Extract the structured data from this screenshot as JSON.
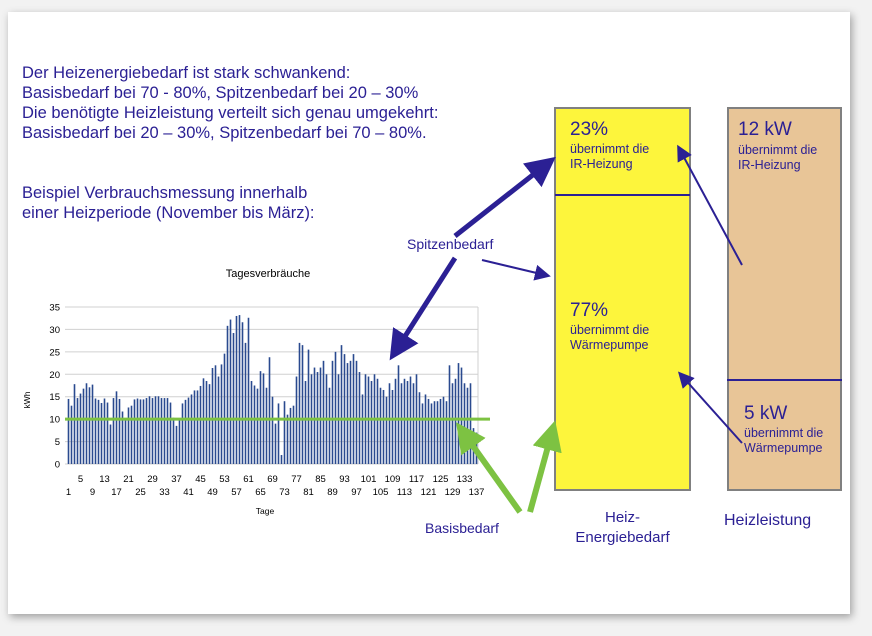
{
  "intro": {
    "lines": [
      "Der Heizenergiebedarf ist stark schwankend:",
      "Basisbedarf bei 70 - 80%, Spitzenbedarf bei 20 – 30%",
      "Die benötigte Heizleistung verteilt sich genau umgekehrt:",
      "Basisbedarf bei 20 – 30%, Spitzenbedarf bei 70 – 80%."
    ],
    "example": [
      "Beispiel Verbrauchsmessung innerhalb",
      "einer Heizperiode (November bis März):"
    ]
  },
  "labels": {
    "spitzenbedarf": "Spitzenbedarf",
    "basisbedarf": "Basisbedarf"
  },
  "energy_box": {
    "title_lines": [
      "Heiz-",
      "Energiebedarf"
    ],
    "top": {
      "value": "23%",
      "text": [
        "übernimmt die",
        "IR-Heizung"
      ],
      "share": 0.23
    },
    "bottom": {
      "value": "77%",
      "text": [
        "übernimmt die",
        "Wärmepumpe"
      ],
      "share": 0.77
    },
    "color": "#fdf53c"
  },
  "power_box": {
    "title": "Heizleistung",
    "top": {
      "value": "12 kW",
      "text": [
        "übernimmt die",
        "IR-Heizung"
      ]
    },
    "bottom": {
      "value": "5 kW",
      "text": [
        "übernimmt die",
        "Wärmepumpe"
      ]
    },
    "color": "#e8c597"
  },
  "colors": {
    "text": "#2b2094",
    "arrow": "#2b2094",
    "green": "#7dc242",
    "bar": "#2a4a8f"
  },
  "chart_data": {
    "type": "bar",
    "title": "Tagesverbräuche",
    "xlabel": "Tage",
    "ylabel": "kWh",
    "ylim": [
      0,
      35
    ],
    "yticks": [
      0,
      5,
      10,
      15,
      20,
      25,
      30,
      35
    ],
    "xtick_labels_top": [
      "5",
      "13",
      "21",
      "29",
      "37",
      "45",
      "53",
      "61",
      "69",
      "77",
      "85",
      "93",
      "101",
      "109",
      "117",
      "125",
      "133"
    ],
    "xtick_labels_bottom": [
      "1",
      "9",
      "17",
      "25",
      "33",
      "41",
      "49",
      "57",
      "65",
      "73",
      "81",
      "89",
      "97",
      "105",
      "113",
      "121",
      "129",
      "137"
    ],
    "grid": true,
    "baseline": 10,
    "values": [
      14.5,
      13,
      17.8,
      14.7,
      15.7,
      16.8,
      18,
      17.1,
      17.7,
      14.6,
      14.3,
      13.6,
      14.6,
      13.7,
      8.8,
      14.7,
      16.2,
      14.5,
      11.7,
      10,
      12.6,
      13,
      14.4,
      14.6,
      14.4,
      14.4,
      14.7,
      15.1,
      14.7,
      15.1,
      15.1,
      14.7,
      14.7,
      14.7,
      13.7,
      10.3,
      8.5,
      10,
      13.5,
      14.3,
      14.8,
      15.5,
      16.4,
      16.4,
      17.4,
      19.1,
      18.5,
      17.8,
      21.4,
      22,
      19.5,
      22.2,
      24.6,
      30.8,
      32.2,
      29.2,
      33,
      33.2,
      31.6,
      27,
      32.6,
      18.5,
      17.5,
      16.8,
      20.7,
      20.2,
      17,
      23.8,
      15,
      9,
      13.5,
      2,
      14,
      11,
      12.5,
      13,
      19.5,
      27,
      26.5,
      18.5,
      25.5,
      20,
      21.5,
      20.5,
      21.5,
      23,
      20,
      17,
      23,
      25,
      20,
      26.5,
      24.5,
      22.5,
      23,
      24.5,
      23,
      20.5,
      15.5,
      20,
      19.5,
      18.5,
      20,
      19,
      17,
      16.5,
      15,
      18,
      16.5,
      19,
      22,
      18,
      19,
      18.5,
      19.5,
      18,
      20,
      16,
      13.5,
      15.5,
      14.5,
      13.5,
      14,
      14,
      14.5,
      15,
      14,
      22,
      18,
      19,
      22.5,
      21.5,
      18,
      17,
      18,
      8,
      7
    ]
  }
}
